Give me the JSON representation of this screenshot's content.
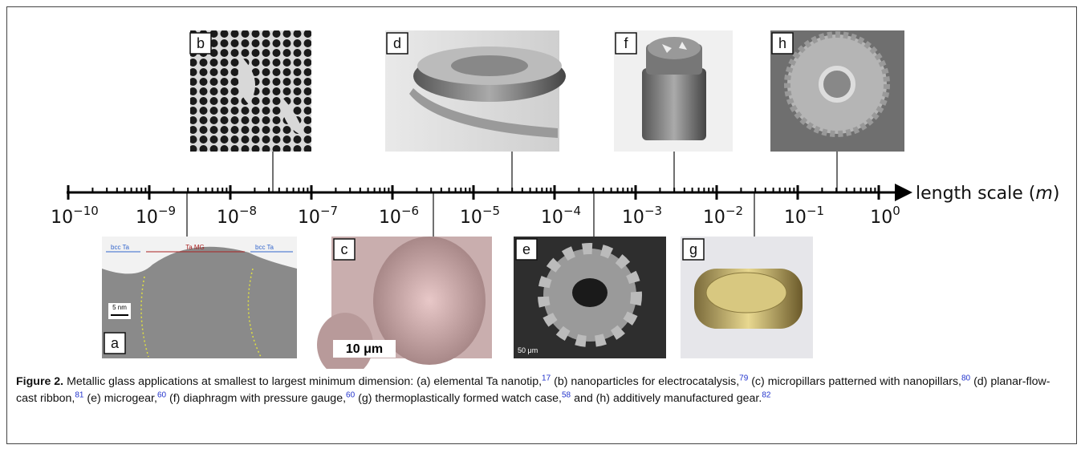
{
  "figure": {
    "axis": {
      "ticks": [
        {
          "base": "10",
          "exponent": "−10"
        },
        {
          "base": "10",
          "exponent": "−9"
        },
        {
          "base": "10",
          "exponent": "−8"
        },
        {
          "base": "10",
          "exponent": "−7"
        },
        {
          "base": "10",
          "exponent": "−6"
        },
        {
          "base": "10",
          "exponent": "−5"
        },
        {
          "base": "10",
          "exponent": "−4"
        },
        {
          "base": "10",
          "exponent": "−3"
        },
        {
          "base": "10",
          "exponent": "−2"
        },
        {
          "base": "10",
          "exponent": "−1"
        },
        {
          "base": "10",
          "exponent": "0"
        }
      ],
      "label_prefix": "length scale (",
      "unit": "m",
      "label_suffix": ")"
    },
    "panels": {
      "a": {
        "label": "a",
        "annotations": [
          "bcc Ta",
          "Ta MG",
          "bcc Ta",
          "5 nm"
        ]
      },
      "b": {
        "label": "b"
      },
      "c": {
        "label": "c",
        "scale_bar": "10 μm"
      },
      "d": {
        "label": "d"
      },
      "e": {
        "label": "e",
        "scale_bar": "50 μm"
      },
      "f": {
        "label": "f"
      },
      "g": {
        "label": "g"
      },
      "h": {
        "label": "h"
      }
    },
    "caption": {
      "label": "Figure 2.",
      "parts": [
        {
          "text": " Metallic glass applications at smallest to largest minimum dimension: (a) elemental Ta nanotip,",
          "ref": "17"
        },
        {
          "text": " (b) nanoparticles for electrocatalysis,",
          "ref": "79"
        },
        {
          "text": " (c) micropillars patterned with nanopillars,",
          "ref": "80"
        },
        {
          "text": " (d) planar-flow-cast ribbon,",
          "ref": "81"
        },
        {
          "text": " (e) microgear,",
          "ref": "60"
        },
        {
          "text": " (f) diaphragm with pressure gauge,",
          "ref": "60"
        },
        {
          "text": " (g) thermoplastically formed watch case,",
          "ref": "58"
        },
        {
          "text": " and (h) additively manufactured gear.",
          "ref": "82"
        }
      ]
    }
  }
}
